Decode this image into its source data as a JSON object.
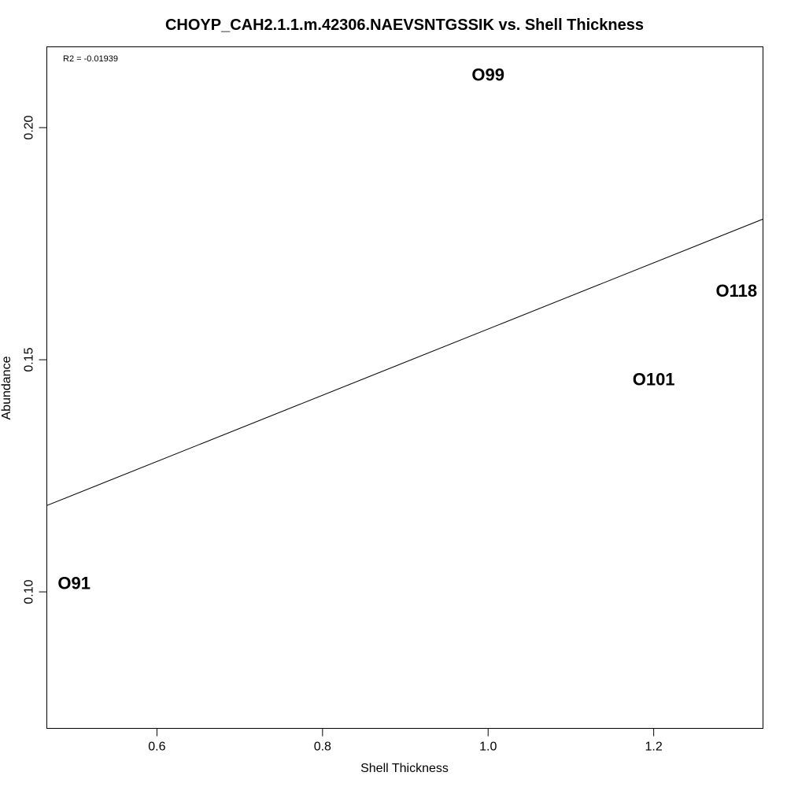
{
  "chart_data": {
    "type": "scatter",
    "title": "CHOYP_CAH2.1.1.m.42306.NAEVSNTGSSIK vs. Shell Thickness",
    "xlabel": "Shell Thickness",
    "ylabel": "Abundance",
    "xlim": [
      0.467,
      1.332
    ],
    "ylim": [
      0.0706,
      0.2174
    ],
    "xticks": [
      0.6,
      0.8,
      1.0,
      1.2
    ],
    "xtick_labels": [
      "0.6",
      "0.8",
      "1.0",
      "1.2"
    ],
    "yticks": [
      0.1,
      0.15,
      0.2
    ],
    "ytick_labels": [
      "0.10",
      "0.15",
      "0.20"
    ],
    "points": [
      {
        "label": "O91",
        "x": 0.5,
        "y": 0.102
      },
      {
        "label": "O99",
        "x": 1.0,
        "y": 0.2115
      },
      {
        "label": "O101",
        "x": 1.2,
        "y": 0.1459
      },
      {
        "label": "O118",
        "x": 1.3,
        "y": 0.1649
      }
    ],
    "regression_line": {
      "x": [
        0.467,
        1.332
      ],
      "y": [
        0.1186,
        0.1803
      ]
    },
    "annotation": "R2 = -0.01939",
    "grid": false,
    "legend": "none"
  }
}
